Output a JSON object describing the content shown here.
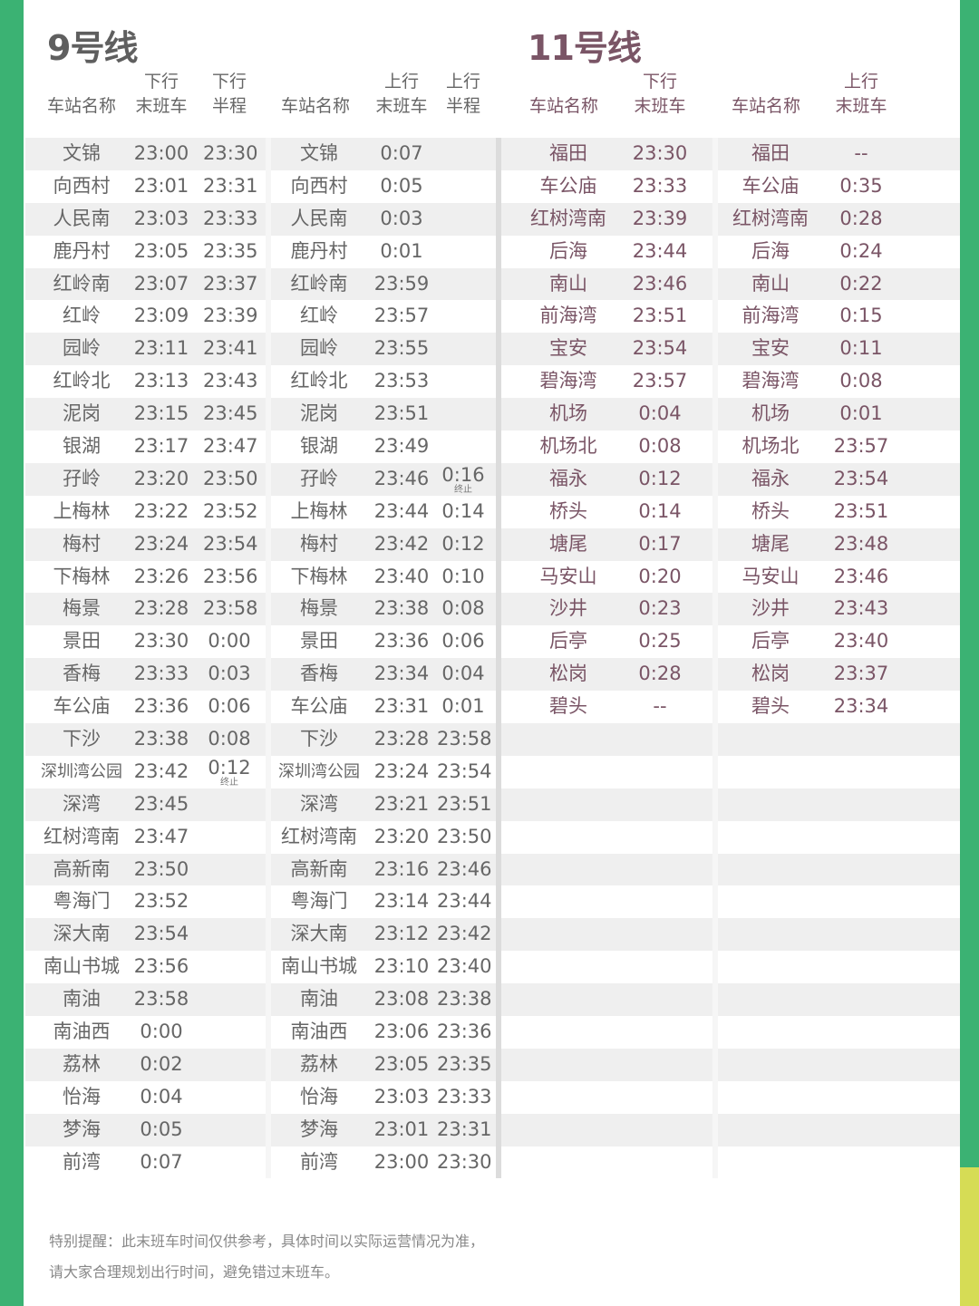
{
  "line9": {
    "title": "9号线",
    "color": "#5f5f5f",
    "down_headers": {
      "station": "车站名称",
      "last_top": "下行",
      "last_bottom": "末班车",
      "half_top": "下行",
      "half_bottom": "半程"
    },
    "up_headers": {
      "station": "车站名称",
      "last_top": "上行",
      "last_bottom": "末班车",
      "half_top": "上行",
      "half_bottom": "半程"
    },
    "down": [
      {
        "station": "文锦",
        "last": "23:00",
        "half": "23:30"
      },
      {
        "station": "向西村",
        "last": "23:01",
        "half": "23:31"
      },
      {
        "station": "人民南",
        "last": "23:03",
        "half": "23:33"
      },
      {
        "station": "鹿丹村",
        "last": "23:05",
        "half": "23:35"
      },
      {
        "station": "红岭南",
        "last": "23:07",
        "half": "23:37"
      },
      {
        "station": "红岭",
        "last": "23:09",
        "half": "23:39"
      },
      {
        "station": "园岭",
        "last": "23:11",
        "half": "23:41"
      },
      {
        "station": "红岭北",
        "last": "23:13",
        "half": "23:43"
      },
      {
        "station": "泥岗",
        "last": "23:15",
        "half": "23:45"
      },
      {
        "station": "银湖",
        "last": "23:17",
        "half": "23:47"
      },
      {
        "station": "孖岭",
        "last": "23:20",
        "half": "23:50"
      },
      {
        "station": "上梅林",
        "last": "23:22",
        "half": "23:52"
      },
      {
        "station": "梅村",
        "last": "23:24",
        "half": "23:54"
      },
      {
        "station": "下梅林",
        "last": "23:26",
        "half": "23:56"
      },
      {
        "station": "梅景",
        "last": "23:28",
        "half": "23:58"
      },
      {
        "station": "景田",
        "last": "23:30",
        "half": "0:00"
      },
      {
        "station": "香梅",
        "last": "23:33",
        "half": "0:03"
      },
      {
        "station": "车公庙",
        "last": "23:36",
        "half": "0:06"
      },
      {
        "station": "下沙",
        "last": "23:38",
        "half": "0:08"
      },
      {
        "station": "深圳湾公园",
        "last": "23:42",
        "half": "0:12",
        "note": "终止"
      },
      {
        "station": "深湾",
        "last": "23:45",
        "half": ""
      },
      {
        "station": "红树湾南",
        "last": "23:47",
        "half": ""
      },
      {
        "station": "高新南",
        "last": "23:50",
        "half": ""
      },
      {
        "station": "粤海门",
        "last": "23:52",
        "half": ""
      },
      {
        "station": "深大南",
        "last": "23:54",
        "half": ""
      },
      {
        "station": "南山书城",
        "last": "23:56",
        "half": ""
      },
      {
        "station": "南油",
        "last": "23:58",
        "half": ""
      },
      {
        "station": "南油西",
        "last": "0:00",
        "half": ""
      },
      {
        "station": "荔林",
        "last": "0:02",
        "half": ""
      },
      {
        "station": "怡海",
        "last": "0:04",
        "half": ""
      },
      {
        "station": "梦海",
        "last": "0:05",
        "half": ""
      },
      {
        "station": "前湾",
        "last": "0:07",
        "half": ""
      }
    ],
    "up": [
      {
        "station": "文锦",
        "last": "0:07",
        "half": ""
      },
      {
        "station": "向西村",
        "last": "0:05",
        "half": ""
      },
      {
        "station": "人民南",
        "last": "0:03",
        "half": ""
      },
      {
        "station": "鹿丹村",
        "last": "0:01",
        "half": ""
      },
      {
        "station": "红岭南",
        "last": "23:59",
        "half": ""
      },
      {
        "station": "红岭",
        "last": "23:57",
        "half": ""
      },
      {
        "station": "园岭",
        "last": "23:55",
        "half": ""
      },
      {
        "station": "红岭北",
        "last": "23:53",
        "half": ""
      },
      {
        "station": "泥岗",
        "last": "23:51",
        "half": ""
      },
      {
        "station": "银湖",
        "last": "23:49",
        "half": ""
      },
      {
        "station": "孖岭",
        "last": "23:46",
        "half": "0:16",
        "note": "终止"
      },
      {
        "station": "上梅林",
        "last": "23:44",
        "half": "0:14"
      },
      {
        "station": "梅村",
        "last": "23:42",
        "half": "0:12"
      },
      {
        "station": "下梅林",
        "last": "23:40",
        "half": "0:10"
      },
      {
        "station": "梅景",
        "last": "23:38",
        "half": "0:08"
      },
      {
        "station": "景田",
        "last": "23:36",
        "half": "0:06"
      },
      {
        "station": "香梅",
        "last": "23:34",
        "half": "0:04"
      },
      {
        "station": "车公庙",
        "last": "23:31",
        "half": "0:01"
      },
      {
        "station": "下沙",
        "last": "23:28",
        "half": "23:58"
      },
      {
        "station": "深圳湾公园",
        "last": "23:24",
        "half": "23:54"
      },
      {
        "station": "深湾",
        "last": "23:21",
        "half": "23:51"
      },
      {
        "station": "红树湾南",
        "last": "23:20",
        "half": "23:50"
      },
      {
        "station": "高新南",
        "last": "23:16",
        "half": "23:46"
      },
      {
        "station": "粤海门",
        "last": "23:14",
        "half": "23:44"
      },
      {
        "station": "深大南",
        "last": "23:12",
        "half": "23:42"
      },
      {
        "station": "南山书城",
        "last": "23:10",
        "half": "23:40"
      },
      {
        "station": "南油",
        "last": "23:08",
        "half": "23:38"
      },
      {
        "station": "南油西",
        "last": "23:06",
        "half": "23:36"
      },
      {
        "station": "荔林",
        "last": "23:05",
        "half": "23:35"
      },
      {
        "station": "怡海",
        "last": "23:03",
        "half": "23:33"
      },
      {
        "station": "梦海",
        "last": "23:01",
        "half": "23:31"
      },
      {
        "station": "前湾",
        "last": "23:00",
        "half": "23:30"
      }
    ]
  },
  "line11": {
    "title": "11号线",
    "color": "#7a5566",
    "down_headers": {
      "station": "车站名称",
      "last_top": "下行",
      "last_bottom": "末班车"
    },
    "up_headers": {
      "station": "车站名称",
      "last_top": "上行",
      "last_bottom": "末班车"
    },
    "down": [
      {
        "station": "福田",
        "last": "23:30"
      },
      {
        "station": "车公庙",
        "last": "23:33"
      },
      {
        "station": "红树湾南",
        "last": "23:39"
      },
      {
        "station": "后海",
        "last": "23:44"
      },
      {
        "station": "南山",
        "last": "23:46"
      },
      {
        "station": "前海湾",
        "last": "23:51"
      },
      {
        "station": "宝安",
        "last": "23:54"
      },
      {
        "station": "碧海湾",
        "last": "23:57"
      },
      {
        "station": "机场",
        "last": "0:04"
      },
      {
        "station": "机场北",
        "last": "0:08"
      },
      {
        "station": "福永",
        "last": "0:12"
      },
      {
        "station": "桥头",
        "last": "0:14"
      },
      {
        "station": "塘尾",
        "last": "0:17"
      },
      {
        "station": "马安山",
        "last": "0:20"
      },
      {
        "station": "沙井",
        "last": "0:23"
      },
      {
        "station": "后亭",
        "last": "0:25"
      },
      {
        "station": "松岗",
        "last": "0:28"
      },
      {
        "station": "碧头",
        "last": "--"
      }
    ],
    "up": [
      {
        "station": "福田",
        "last": "--"
      },
      {
        "station": "车公庙",
        "last": "0:35"
      },
      {
        "station": "红树湾南",
        "last": "0:28"
      },
      {
        "station": "后海",
        "last": "0:24"
      },
      {
        "station": "南山",
        "last": "0:22"
      },
      {
        "station": "前海湾",
        "last": "0:15"
      },
      {
        "station": "宝安",
        "last": "0:11"
      },
      {
        "station": "碧海湾",
        "last": "0:08"
      },
      {
        "station": "机场",
        "last": "0:01"
      },
      {
        "station": "机场北",
        "last": "23:57"
      },
      {
        "station": "福永",
        "last": "23:54"
      },
      {
        "station": "桥头",
        "last": "23:51"
      },
      {
        "station": "塘尾",
        "last": "23:48"
      },
      {
        "station": "马安山",
        "last": "23:46"
      },
      {
        "station": "沙井",
        "last": "23:43"
      },
      {
        "station": "后亭",
        "last": "23:40"
      },
      {
        "station": "松岗",
        "last": "23:37"
      },
      {
        "station": "碧头",
        "last": "23:34"
      }
    ]
  },
  "footer": {
    "line1": "特别提醒：此末班车时间仅供参考，具体时间以实际运营情况为准，",
    "line2": "请大家合理规划出行时间，避免错过末班车。"
  },
  "colors": {
    "green": "#3bb273",
    "yellow_green": "#d6dc55",
    "stripe": "#efefef"
  }
}
